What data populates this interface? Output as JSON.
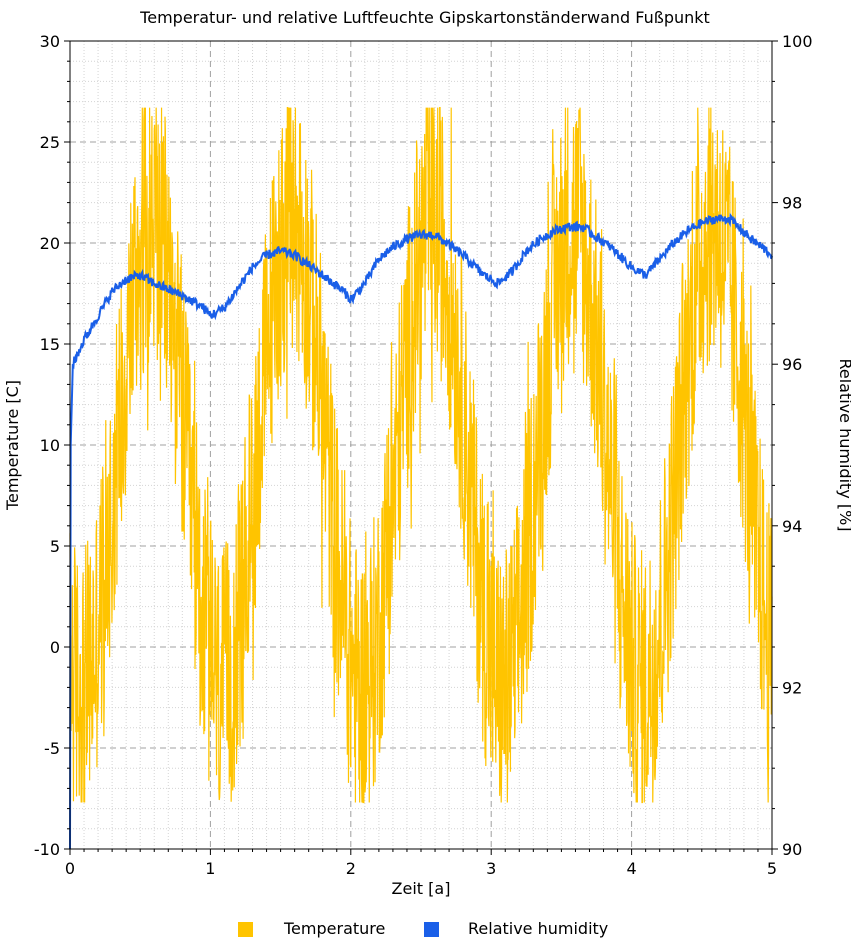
{
  "chart_data": {
    "type": "line",
    "title": "Temperatur- und relative Luftfeuchte Gipskartonständerwand Fußpunkt",
    "xlabel": "Zeit [a]",
    "ylabel": "Temperature [C]",
    "y2label": "Relative humidity [%]",
    "xlim": [
      0,
      5
    ],
    "ylim": [
      -10,
      30
    ],
    "y2lim": [
      90,
      100
    ],
    "xticks": [
      "0",
      "1",
      "2",
      "3",
      "4",
      "5"
    ],
    "yticks": [
      "-10",
      "-5",
      "0",
      "5",
      "10",
      "15",
      "20",
      "25",
      "30"
    ],
    "y2ticks": [
      "90",
      "92",
      "94",
      "96",
      "98",
      "100"
    ],
    "grid": true,
    "legend_position": "bottom-center",
    "series": [
      {
        "name": "Temperature",
        "axis": "left",
        "color": "#ffc400",
        "seasonal_mean": 9.5,
        "seasonal_amplitude": 11.5,
        "peak_phase_years": 0.58,
        "daily_spread": 7,
        "min": -7.7,
        "max": 26.7
      },
      {
        "name": "Relative humidity",
        "axis": "right",
        "color": "#1a5fe8",
        "x": [
          0,
          0.005,
          0.02,
          0.1,
          0.2,
          0.3,
          0.4,
          0.5,
          0.6,
          0.8,
          0.95,
          1.0,
          1.1,
          1.2,
          1.3,
          1.4,
          1.5,
          1.6,
          1.8,
          1.95,
          2.0,
          2.1,
          2.2,
          2.3,
          2.4,
          2.5,
          2.6,
          2.8,
          2.95,
          3.05,
          3.15,
          3.25,
          3.35,
          3.45,
          3.55,
          3.65,
          3.85,
          4.0,
          4.1,
          4.2,
          4.3,
          4.4,
          4.5,
          4.6,
          4.7,
          4.85,
          5.0
        ],
        "values": [
          90.0,
          95.0,
          96.0,
          96.3,
          96.6,
          96.9,
          97.05,
          97.1,
          97.0,
          96.85,
          96.7,
          96.6,
          96.7,
          96.95,
          97.2,
          97.35,
          97.4,
          97.35,
          97.1,
          96.9,
          96.8,
          97.0,
          97.3,
          97.45,
          97.55,
          97.6,
          97.6,
          97.35,
          97.1,
          97.0,
          97.15,
          97.4,
          97.55,
          97.65,
          97.7,
          97.7,
          97.45,
          97.2,
          97.1,
          97.3,
          97.5,
          97.65,
          97.75,
          97.8,
          97.8,
          97.55,
          97.35
        ]
      }
    ]
  },
  "legend": {
    "items": [
      {
        "label": "Temperature",
        "color": "#ffc400"
      },
      {
        "label": "Relative humidity",
        "color": "#1a5fe8"
      }
    ]
  }
}
